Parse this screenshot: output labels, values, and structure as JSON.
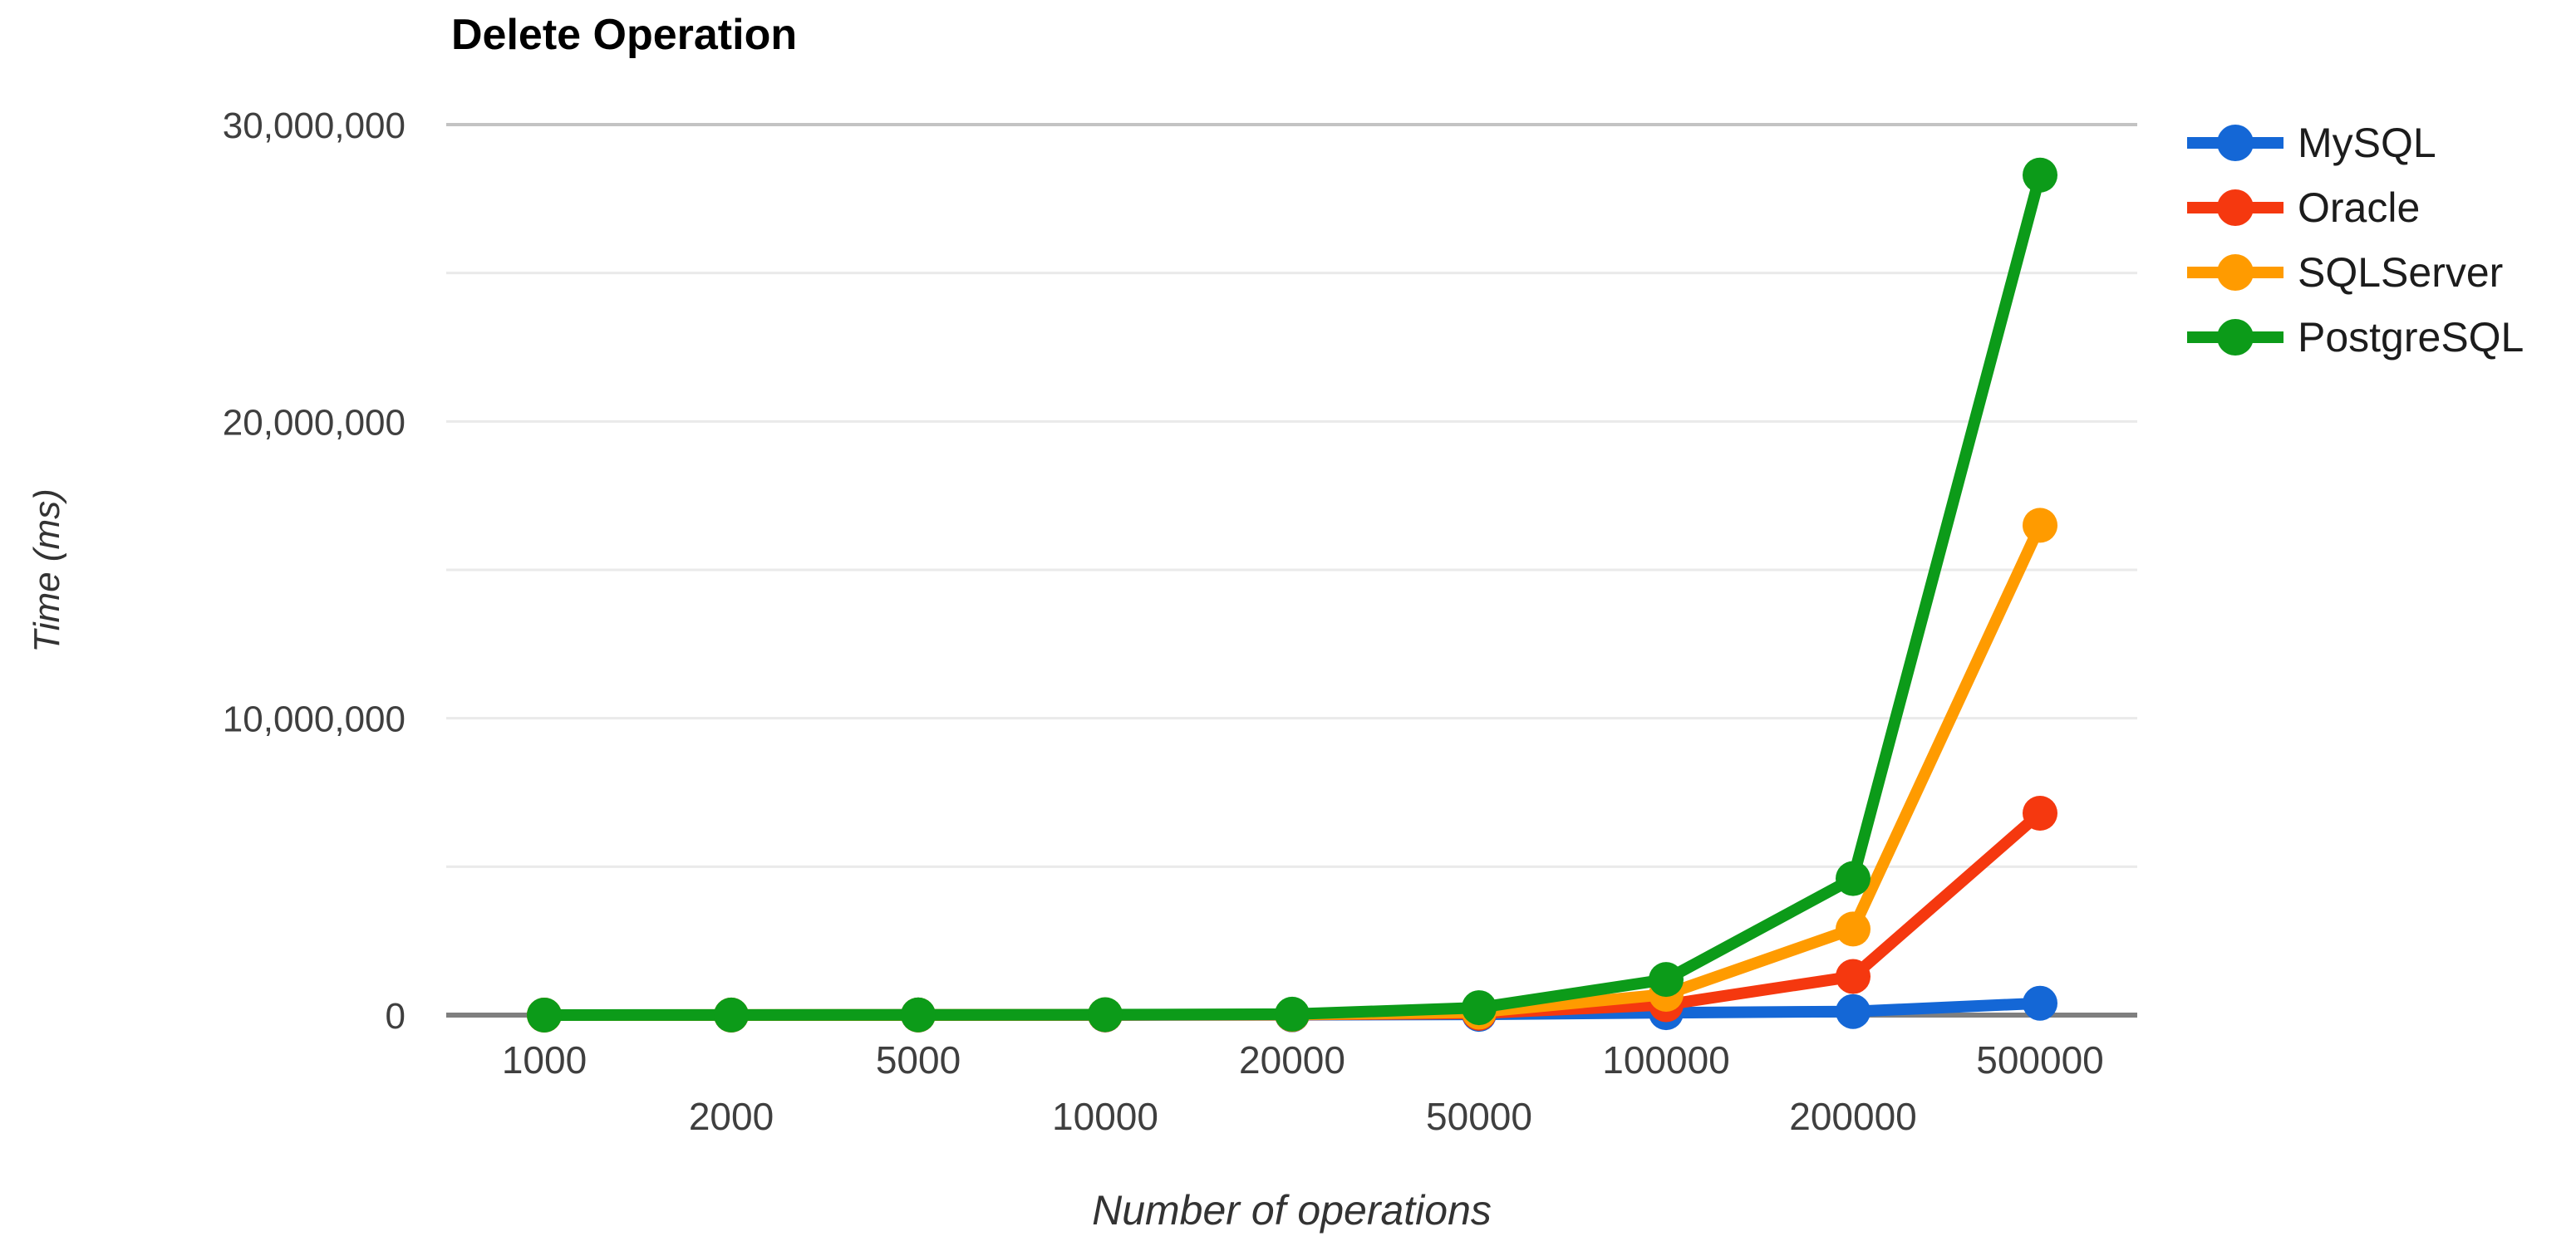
{
  "chart": {
    "title": "Delete Operation",
    "x_axis_title": "Number of operations",
    "y_axis_title": "Time (ms)"
  },
  "chart_data": {
    "type": "line",
    "title": "Delete Operation",
    "xlabel": "Number of operations",
    "ylabel": "Time (ms)",
    "x_scale": "categorical",
    "categories": [
      1000,
      2000,
      5000,
      10000,
      20000,
      50000,
      100000,
      200000,
      500000
    ],
    "series": [
      {
        "name": "MySQL",
        "color": "#1467d6",
        "values": [
          400,
          900,
          2200,
          4500,
          9000,
          25000,
          80000,
          120000,
          400000
        ]
      },
      {
        "name": "Oracle",
        "color": "#f5380f",
        "values": [
          700,
          1500,
          3800,
          7500,
          16000,
          60000,
          350000,
          1300000,
          6800000
        ]
      },
      {
        "name": "SQLServer",
        "color": "#ff9b00",
        "values": [
          900,
          1900,
          4800,
          9500,
          20000,
          100000,
          700000,
          2900000,
          16500000
        ]
      },
      {
        "name": "PostgreSQL",
        "color": "#0c9b19",
        "values": [
          1400,
          2800,
          7000,
          14000,
          30000,
          250000,
          1200000,
          4600000,
          28300000
        ]
      }
    ],
    "ylim": [
      0,
      30000000
    ],
    "yticks": [
      {
        "value": 0,
        "label": "0"
      },
      {
        "value": 10000000,
        "label": "10,000,000"
      },
      {
        "value": 20000000,
        "label": "20,000,000"
      },
      {
        "value": 30000000,
        "label": "30,000,000"
      }
    ],
    "minor_gridlines": [
      5000000,
      15000000,
      25000000
    ],
    "grid": true,
    "legend_position": "right"
  }
}
